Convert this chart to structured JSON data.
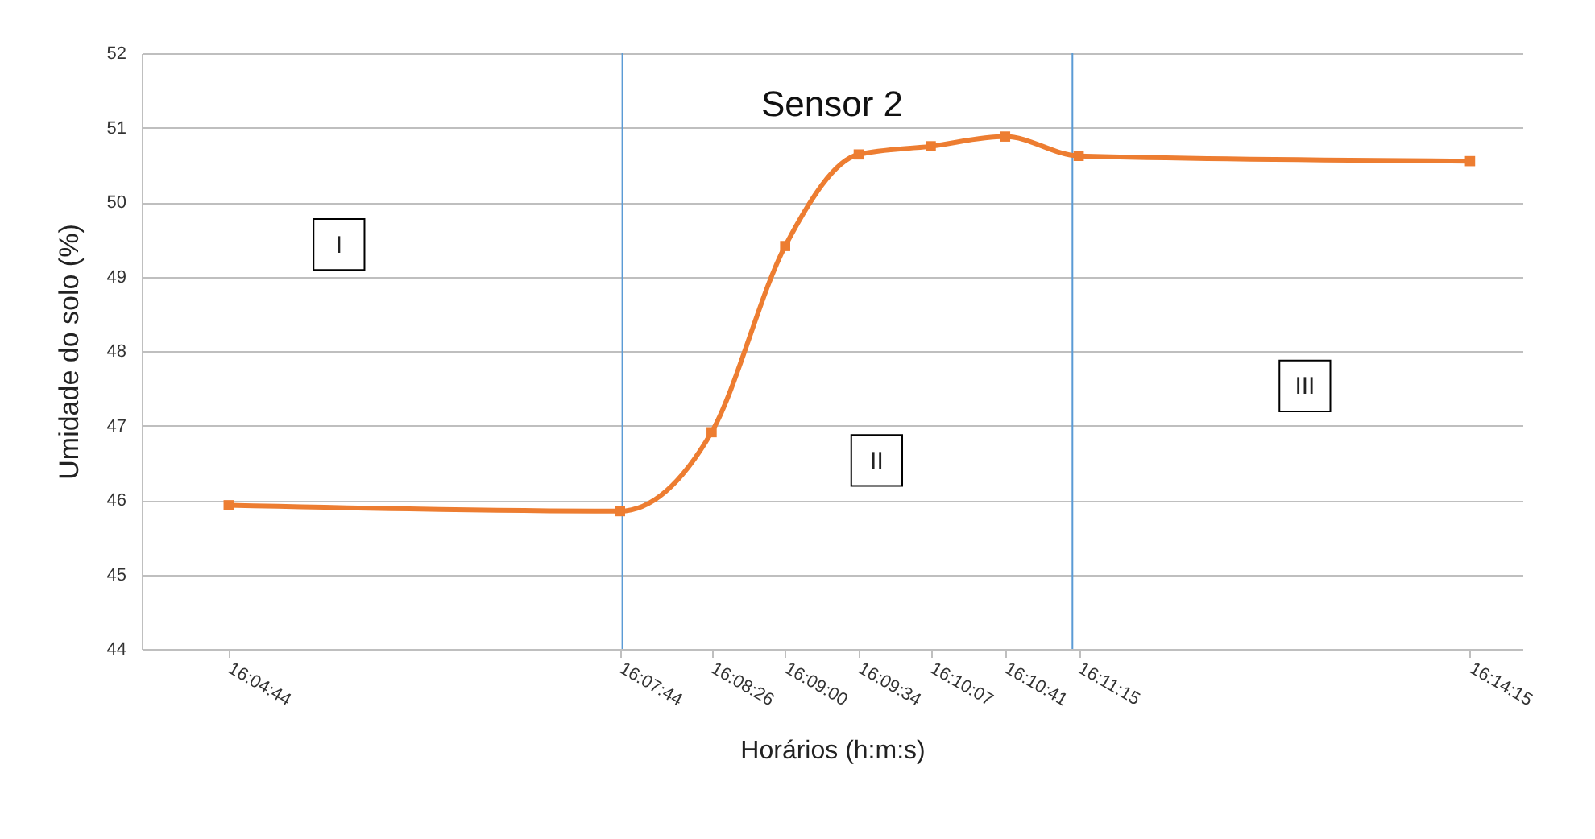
{
  "chart_data": {
    "type": "line",
    "title": "Sensor 2",
    "xlabel": "Horários (h:m:s)",
    "ylabel": "Umidade do solo (%)",
    "x": [
      16.0789,
      16.1289,
      16.1406,
      16.15,
      16.1594,
      16.1686,
      16.1781,
      16.1875,
      16.2375
    ],
    "series": [
      {
        "color": "#ed7d31",
        "values": [
          45.93,
          45.85,
          46.91,
          49.41,
          50.64,
          50.75,
          50.88,
          50.62,
          50.55
        ]
      }
    ],
    "xlim": [
      16.0678,
      16.2442
    ],
    "xticks": [
      {
        "value": 16.0789,
        "label": "16:04:44"
      },
      {
        "value": 16.1289,
        "label": "16:07:44"
      },
      {
        "value": 16.1406,
        "label": "16:08:26"
      },
      {
        "value": 16.15,
        "label": "16:09:00"
      },
      {
        "value": 16.1594,
        "label": "16:09:34"
      },
      {
        "value": 16.1686,
        "label": "16:10:07"
      },
      {
        "value": 16.1781,
        "label": "16:10:41"
      },
      {
        "value": 16.1875,
        "label": "16:11:15"
      },
      {
        "value": 16.2375,
        "label": "16:14:15"
      }
    ],
    "ylim": [
      44,
      52
    ],
    "yticks": [
      44,
      45,
      46,
      47,
      48,
      49,
      50,
      51,
      52
    ],
    "grid": "y",
    "marker": "square",
    "ref_lines": [
      {
        "axis": "x",
        "value": 16.1292,
        "color": "#5b9bd5"
      },
      {
        "axis": "x",
        "value": 16.1867,
        "color": "#5b9bd5"
      }
    ],
    "annotations": [
      {
        "text": "I",
        "x": 16.093,
        "y": 49.43
      },
      {
        "text": "II",
        "x": 16.1617,
        "y": 46.53
      },
      {
        "text": "III",
        "x": 16.2164,
        "y": 47.53
      }
    ]
  }
}
